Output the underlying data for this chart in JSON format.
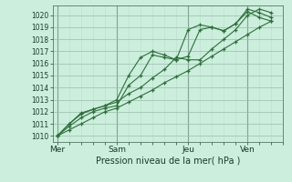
{
  "title": "",
  "xlabel": "Pression niveau de la mer( hPa )",
  "ylabel": "",
  "bg_color": "#cceedd",
  "grid_major_color": "#99bbaa",
  "grid_minor_color": "#bbddcc",
  "line_color": "#2d6e3a",
  "ylim": [
    1009.5,
    1020.8
  ],
  "xlim": [
    -0.2,
    9.5
  ],
  "xtick_positions": [
    0.0,
    2.5,
    5.5,
    8.0
  ],
  "xtick_labels": [
    "Mer",
    "Sam",
    "Jeu",
    "Ven"
  ],
  "ytick_positions": [
    1010,
    1011,
    1012,
    1013,
    1014,
    1015,
    1016,
    1017,
    1018,
    1019,
    1020
  ],
  "vline_positions": [
    0.0,
    2.5,
    5.5,
    8.0
  ],
  "series": [
    [
      0.0,
      1010.0,
      0.5,
      1010.5,
      1.0,
      1011.0,
      1.5,
      1011.5,
      2.0,
      1012.0,
      2.5,
      1012.3,
      3.0,
      1012.8,
      3.5,
      1013.3,
      4.0,
      1013.8,
      4.5,
      1014.4,
      5.0,
      1014.9,
      5.5,
      1015.4,
      6.0,
      1016.0,
      6.5,
      1016.6,
      7.0,
      1017.2,
      7.5,
      1017.8,
      8.0,
      1018.4,
      8.5,
      1019.0,
      9.0,
      1019.5
    ],
    [
      0.0,
      1010.0,
      0.5,
      1010.8,
      1.0,
      1011.5,
      1.5,
      1012.0,
      2.0,
      1012.3,
      2.5,
      1012.5,
      3.0,
      1014.2,
      3.5,
      1015.0,
      4.0,
      1016.7,
      4.5,
      1016.5,
      5.0,
      1016.3,
      5.5,
      1018.8,
      6.0,
      1019.2,
      6.5,
      1019.0,
      7.0,
      1018.7,
      7.5,
      1019.3,
      8.0,
      1020.3,
      8.5,
      1019.8,
      9.0,
      1019.5
    ],
    [
      0.0,
      1010.0,
      0.5,
      1011.0,
      1.0,
      1011.9,
      1.5,
      1012.2,
      2.0,
      1012.5,
      2.5,
      1012.8,
      3.0,
      1013.5,
      3.5,
      1014.0,
      4.0,
      1014.8,
      4.5,
      1015.5,
      5.0,
      1016.5,
      5.5,
      1016.3,
      6.0,
      1016.3,
      6.5,
      1017.2,
      7.0,
      1018.0,
      7.5,
      1018.8,
      8.0,
      1020.0,
      8.5,
      1020.5,
      9.0,
      1020.2
    ],
    [
      0.0,
      1010.0,
      0.5,
      1011.0,
      1.0,
      1011.8,
      1.5,
      1012.2,
      2.0,
      1012.5,
      2.5,
      1013.0,
      3.0,
      1015.0,
      3.5,
      1016.5,
      4.0,
      1017.0,
      4.5,
      1016.7,
      5.0,
      1016.3,
      5.5,
      1016.6,
      6.0,
      1018.8,
      6.5,
      1019.0,
      7.0,
      1018.7,
      7.5,
      1019.3,
      8.0,
      1020.5,
      8.5,
      1020.2,
      9.0,
      1019.8
    ]
  ]
}
